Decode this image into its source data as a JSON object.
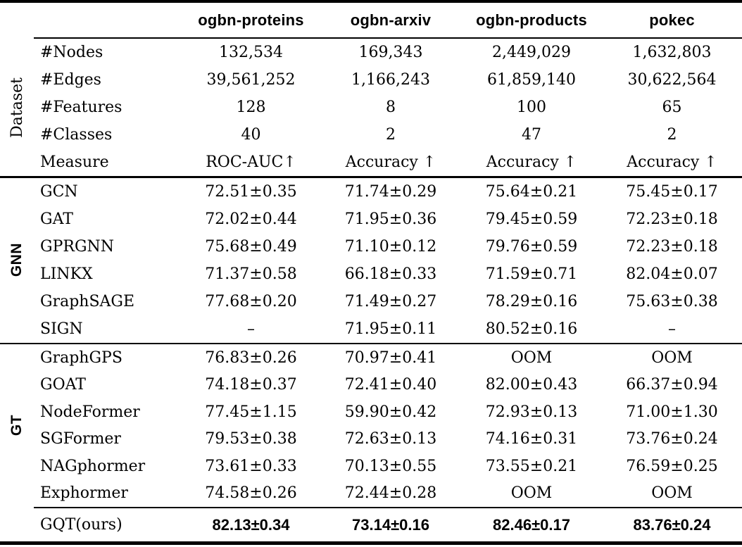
{
  "table": {
    "columns": [
      "ogbn-proteins",
      "ogbn-arxiv",
      "ogbn-products",
      "pokec"
    ],
    "dataset": {
      "label": "Dataset",
      "rows": [
        {
          "label": "#Nodes",
          "values": [
            "132,534",
            "169,343",
            "2,449,029",
            "1,632,803"
          ]
        },
        {
          "label": "#Edges",
          "values": [
            "39,561,252",
            "1,166,243",
            "61,859,140",
            "30,622,564"
          ]
        },
        {
          "label": "#Features",
          "values": [
            "128",
            "8",
            "100",
            "65"
          ]
        },
        {
          "label": "#Classes",
          "values": [
            "40",
            "2",
            "47",
            "2"
          ]
        },
        {
          "label": "Measure",
          "values": [
            "ROC-AUC↑",
            "Accuracy ↑",
            "Accuracy ↑",
            "Accuracy ↑"
          ]
        }
      ]
    },
    "gnn": {
      "label": "GNN",
      "rows": [
        {
          "label": "GCN",
          "values": [
            "72.51±0.35",
            "71.74±0.29",
            "75.64±0.21",
            "75.45±0.17"
          ]
        },
        {
          "label": "GAT",
          "values": [
            "72.02±0.44",
            "71.95±0.36",
            "79.45±0.59",
            "72.23±0.18"
          ]
        },
        {
          "label": "GPRGNN",
          "values": [
            "75.68±0.49",
            "71.10±0.12",
            "79.76±0.59",
            "72.23±0.18"
          ]
        },
        {
          "label": "LINKX",
          "values": [
            "71.37±0.58",
            "66.18±0.33",
            "71.59±0.71",
            "82.04±0.07"
          ]
        },
        {
          "label": "GraphSAGE",
          "values": [
            "77.68±0.20",
            "71.49±0.27",
            "78.29±0.16",
            "75.63±0.38"
          ]
        },
        {
          "label": "SIGN",
          "values": [
            "–",
            "71.95±0.11",
            "80.52±0.16",
            "–"
          ]
        }
      ]
    },
    "gt": {
      "label": "GT",
      "rows": [
        {
          "label": "GraphGPS",
          "values": [
            "76.83±0.26",
            "70.97±0.41",
            "OOM",
            "OOM"
          ]
        },
        {
          "label": "GOAT",
          "values": [
            "74.18±0.37",
            "72.41±0.40",
            "82.00±0.43",
            "66.37±0.94"
          ]
        },
        {
          "label": "NodeFormer",
          "values": [
            "77.45±1.15",
            "59.90±0.42",
            "72.93±0.13",
            "71.00±1.30"
          ]
        },
        {
          "label": "SGFormer",
          "values": [
            "79.53±0.38",
            "72.63±0.13",
            "74.16±0.31",
            "73.76±0.24"
          ]
        },
        {
          "label": "NAGphormer",
          "values": [
            "73.61±0.33",
            "70.13±0.55",
            "73.55±0.21",
            "76.59±0.25"
          ]
        },
        {
          "label": "Exphormer",
          "values": [
            "74.58±0.26",
            "72.44±0.28",
            "OOM",
            "OOM"
          ]
        }
      ]
    },
    "ours": {
      "label": "GQT(ours)",
      "values": [
        "82.13±0.34",
        "73.14±0.16",
        "82.46±0.17",
        "83.76±0.24"
      ]
    }
  }
}
